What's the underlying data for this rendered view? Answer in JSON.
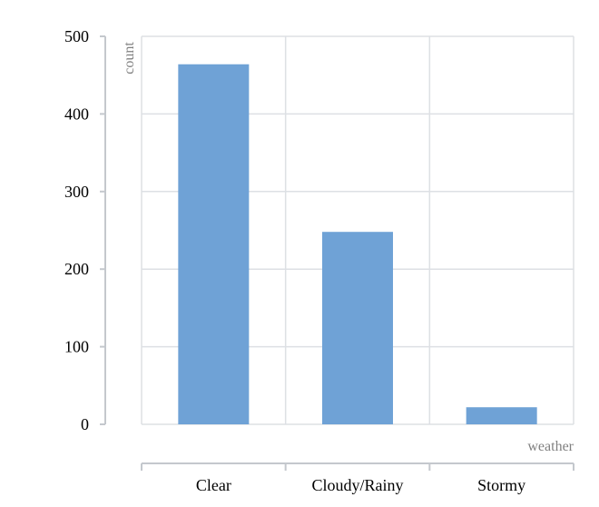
{
  "chart_data": {
    "type": "bar",
    "categories": [
      "Clear",
      "Cloudy/Rainy",
      "Stormy"
    ],
    "values": [
      464,
      248,
      22
    ],
    "xlabel": "weather",
    "ylabel": "count",
    "ylim": [
      0,
      500
    ],
    "yticks": [
      "0",
      "100",
      "200",
      "300",
      "400",
      "500"
    ],
    "grid": true,
    "bar_color": "#6fa2d6"
  }
}
